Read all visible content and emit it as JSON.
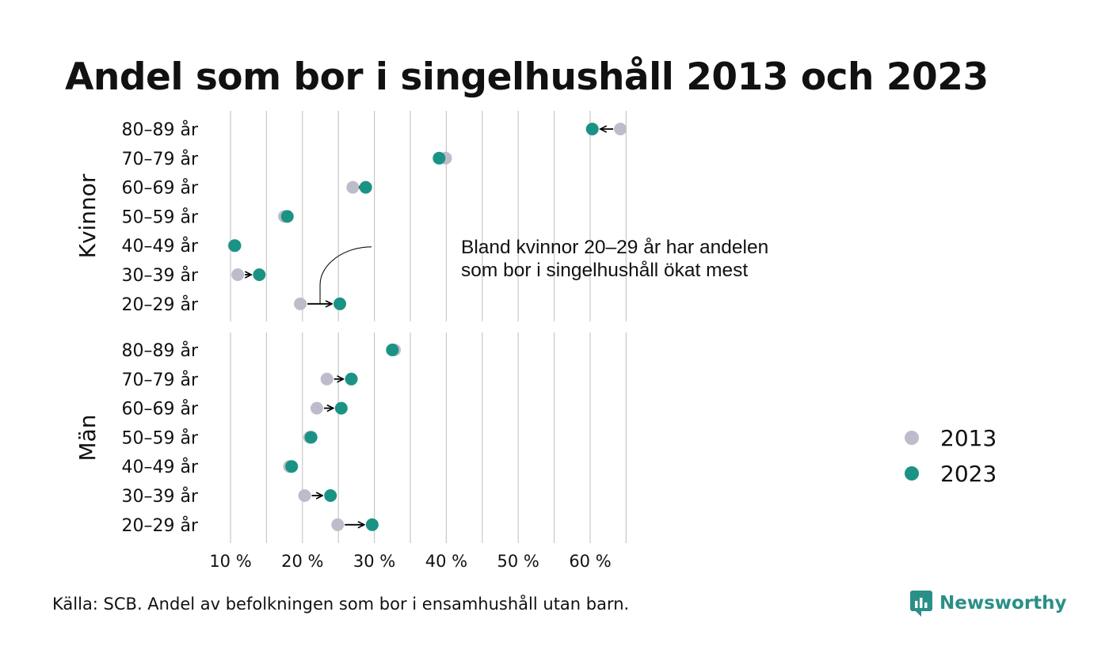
{
  "title": "Andel som bor i singelhushåll 2013 och 2023",
  "source": "Källa: SCB. Andel av befolkningen som bor i ensamhushåll utan barn.",
  "brand": {
    "name": "Newsworthy",
    "icon": "newsworthy-logo-icon"
  },
  "colors": {
    "y2013": "#bdbccb",
    "y2023": "#1a9384",
    "grid": "#c8c8c8",
    "arrow": "#000000"
  },
  "chart_data": {
    "type": "scatter",
    "subtype": "dumbbell",
    "xlim": [
      10,
      65
    ],
    "x_ticks": [
      10,
      20,
      30,
      40,
      50,
      60
    ],
    "x_tick_labels": [
      "10 %",
      "20 %",
      "30 %",
      "40 %",
      "50 %",
      "60 %"
    ],
    "grid": true,
    "legend": {
      "placement": "right",
      "entries": [
        "2013",
        "2023"
      ]
    },
    "categories": [
      "80–89 år",
      "70–79 år",
      "60–69 år",
      "50–59 år",
      "40–49 år",
      "30–39 år",
      "20–29 år"
    ],
    "panels": [
      {
        "name": "Kvinnor",
        "series": [
          {
            "name": "2013",
            "values": [
              64.2,
              39.9,
              27.0,
              17.5,
              10.5,
              11.0,
              19.7
            ]
          },
          {
            "name": "2023",
            "values": [
              60.3,
              39.0,
              28.8,
              17.9,
              10.6,
              14.0,
              25.2
            ]
          }
        ]
      },
      {
        "name": "Män",
        "series": [
          {
            "name": "2013",
            "values": [
              32.8,
              23.4,
              22.0,
              21.0,
              18.2,
              20.3,
              24.9
            ]
          },
          {
            "name": "2023",
            "values": [
              32.5,
              26.8,
              25.4,
              21.2,
              18.5,
              23.9,
              29.7
            ]
          }
        ]
      }
    ],
    "annotation": {
      "panel": "Kvinnor",
      "category": "20–29 år",
      "lines": [
        "Bland kvinnor 20–29 år har andelen",
        "som bor i singelhushåll ökat mest"
      ]
    }
  }
}
